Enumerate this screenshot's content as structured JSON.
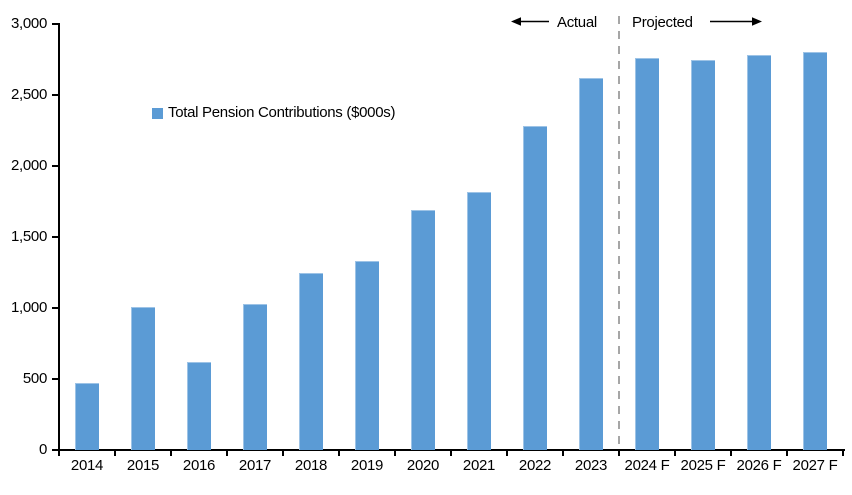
{
  "annotations": {
    "actual_label": "Actual",
    "projected_label": "Projected"
  },
  "legend": {
    "label": "Total Pension Contributions ($000s)"
  },
  "chart_data": {
    "type": "bar",
    "title": "",
    "series_name": "Total Pension Contributions ($000s)",
    "categories": [
      "2014",
      "2015",
      "2016",
      "2017",
      "2018",
      "2019",
      "2020",
      "2021",
      "2022",
      "2023",
      "2024 F",
      "2025 F",
      "2026 F",
      "2027 F"
    ],
    "values": [
      470,
      1010,
      620,
      1030,
      1250,
      1330,
      1690,
      1820,
      2280,
      2620,
      2760,
      2750,
      2780,
      2800
    ],
    "ylim": [
      0,
      3000
    ],
    "ytick_values": [
      0,
      500,
      1000,
      1500,
      2000,
      2500,
      3000
    ],
    "ytick_labels": [
      "0",
      "500",
      "1,000",
      "1,500",
      "2,000",
      "2,500",
      "3,000"
    ],
    "xlabel": "",
    "ylabel": "",
    "grid": false,
    "legend_position": "inside-upper-left",
    "bar_color": "#5B9BD5",
    "divider_color": "#A6A6A6",
    "divider_before_category": "2024 F",
    "actual_section_categories": [
      "2014",
      "2015",
      "2016",
      "2017",
      "2018",
      "2019",
      "2020",
      "2021",
      "2022",
      "2023"
    ],
    "projected_section_categories": [
      "2024 F",
      "2025 F",
      "2026 F",
      "2027 F"
    ]
  }
}
